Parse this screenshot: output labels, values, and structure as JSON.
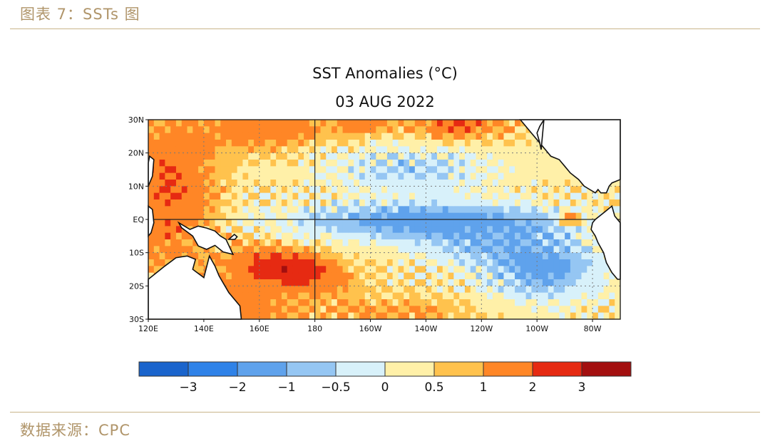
{
  "page": {
    "caption": "图表 7：SSTs 图",
    "source": "数据来源：CPC"
  },
  "chart_data": {
    "type": "heatmap",
    "title": "SST Anomalies (°C)",
    "subtitle": "03 AUG 2022",
    "x_ticks": [
      "120E",
      "140E",
      "160E",
      "180",
      "160W",
      "140W",
      "120W",
      "100W",
      "80W"
    ],
    "y_ticks": [
      "30N",
      "20N",
      "10N",
      "EQ",
      "10S",
      "20S",
      "30S"
    ],
    "xlim_deg_east": [
      120,
      290
    ],
    "ylim_deg": [
      -30,
      30
    ],
    "colorbar": {
      "labels": [
        "−3",
        "−2",
        "−1",
        "−0.5",
        "0",
        "0.5",
        "1",
        "2",
        "3"
      ],
      "bounds": [
        -4,
        -3,
        -2,
        -1,
        -0.5,
        0,
        0.5,
        1,
        2,
        3,
        4
      ],
      "colors": [
        "#1a64cc",
        "#2f82e8",
        "#5fa2ec",
        "#95c6f3",
        "#d8f1fa",
        "#fff0a8",
        "#ffc24d",
        "#ff8626",
        "#e62a12",
        "#a30f0f"
      ]
    },
    "regions": [
      {
        "name": "central-equatorial-cold-tongue",
        "anomaly": -1.2
      },
      {
        "name": "western-pacific-warm-pool",
        "anomaly": 1.5
      },
      {
        "name": "southwest-pacific-warm-band",
        "anomaly": 2.2
      },
      {
        "name": "northeast-pacific-warm",
        "anomaly": 1.2
      },
      {
        "name": "southeast-pacific-cold",
        "anomaly": -1.2
      }
    ]
  }
}
